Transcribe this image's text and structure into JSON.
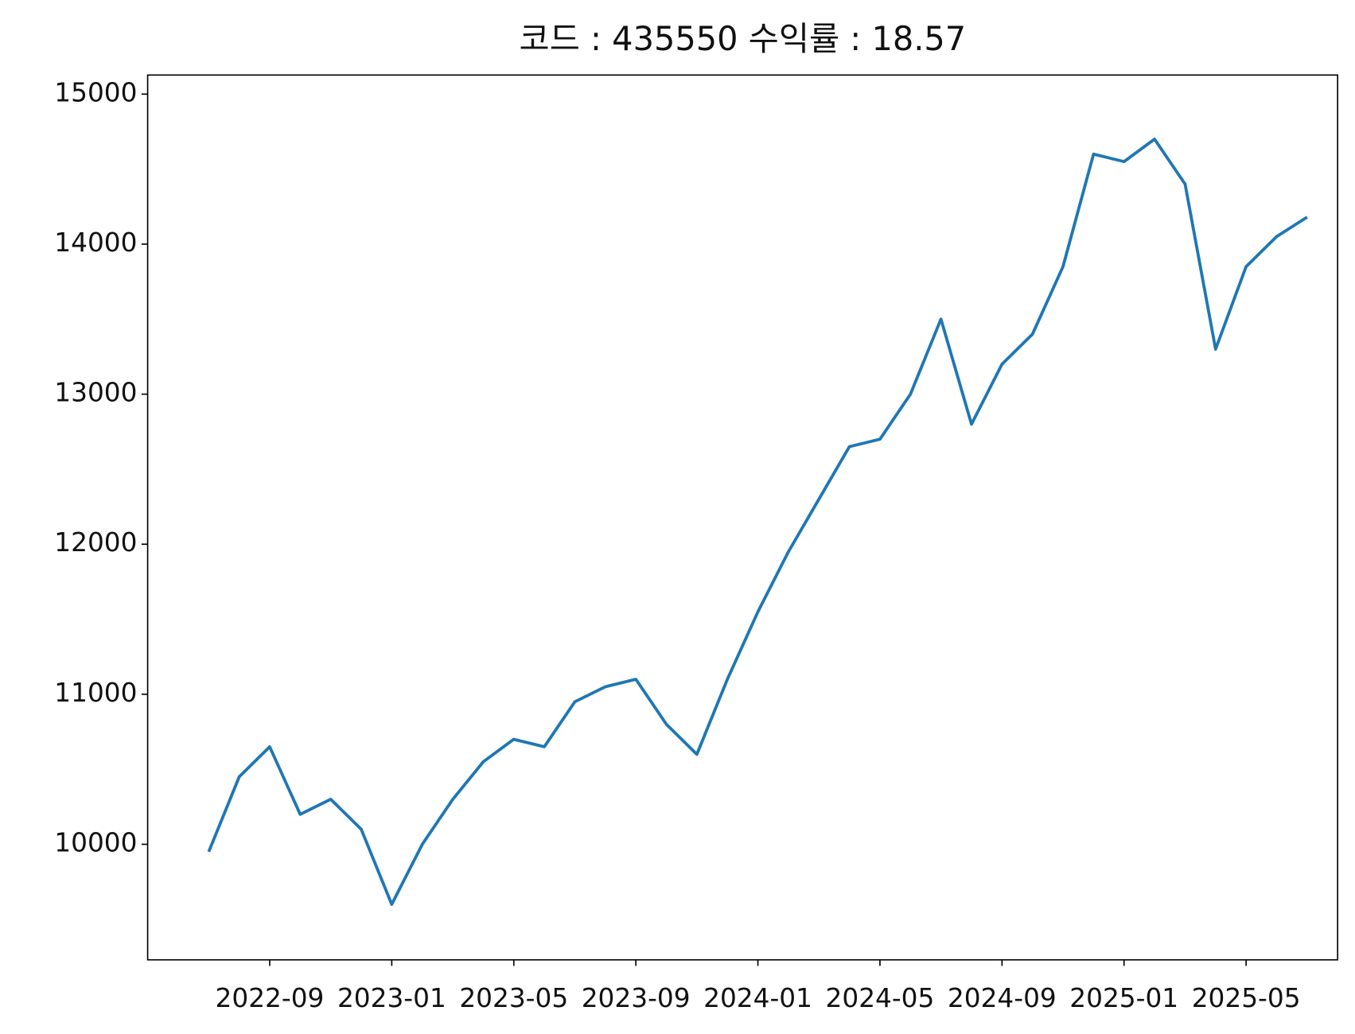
{
  "chart_data": {
    "type": "line",
    "title": "코드 : 435550 수익률 : 18.57",
    "x": [
      "2022-07",
      "2022-08",
      "2022-09",
      "2022-10",
      "2022-11",
      "2022-12",
      "2023-01",
      "2023-02",
      "2023-03",
      "2023-04",
      "2023-05",
      "2023-06",
      "2023-07",
      "2023-08",
      "2023-09",
      "2023-10",
      "2023-11",
      "2023-12",
      "2024-01",
      "2024-02",
      "2024-03",
      "2024-04",
      "2024-05",
      "2024-06",
      "2024-07",
      "2024-08",
      "2024-09",
      "2024-10",
      "2024-11",
      "2024-12",
      "2025-01",
      "2025-02",
      "2025-03",
      "2025-04",
      "2025-05",
      "2025-06",
      "2025-07"
    ],
    "series": [
      {
        "color": "#1f77b4",
        "values": [
          9950,
          10450,
          10650,
          10200,
          10300,
          10100,
          9600,
          10000,
          10300,
          10550,
          10700,
          10650,
          10950,
          11050,
          11100,
          10800,
          10600,
          11100,
          11550,
          11950,
          12300,
          12650,
          12700,
          13000,
          13500,
          12800,
          13200,
          13400,
          13850,
          14600,
          14550,
          14700,
          14400,
          13300,
          13850,
          14050,
          14180
        ]
      }
    ],
    "xlim": [
      "2022-05",
      "2025-08"
    ],
    "xticks": [
      "2022-09",
      "2023-01",
      "2023-05",
      "2023-09",
      "2024-01",
      "2024-05",
      "2024-09",
      "2025-01",
      "2025-05"
    ],
    "ylim": [
      9230,
      15127
    ],
    "yticks": [
      10000,
      11000,
      12000,
      13000,
      14000,
      15000
    ],
    "grid": false
  }
}
